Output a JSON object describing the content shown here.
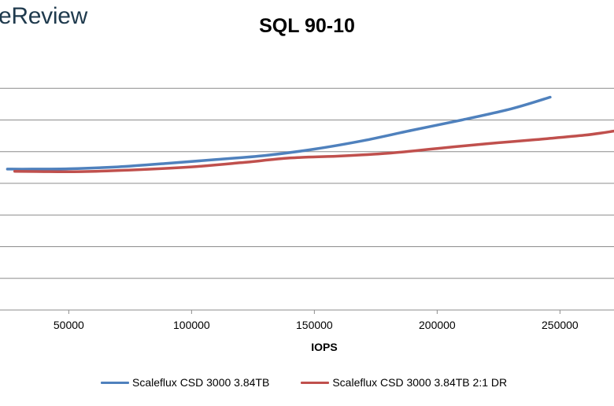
{
  "brand": "eReview",
  "chart_data": {
    "type": "line",
    "title": "SQL 90-10",
    "xlabel": "IOPS",
    "ylabel": "",
    "xlim": [
      22000,
      272000
    ],
    "x_ticks": [
      50000,
      100000,
      150000,
      200000,
      250000
    ],
    "ylim": [
      0,
      8
    ],
    "y_gridlines": [
      1,
      2,
      3,
      4,
      5,
      6,
      7
    ],
    "legend_position": "bottom",
    "series": [
      {
        "name": "Scaleflux CSD 3000 3.84TB",
        "color": "#4f81bd",
        "points": [
          [
            25000,
            4.45
          ],
          [
            35000,
            4.45
          ],
          [
            50000,
            4.46
          ],
          [
            70000,
            4.52
          ],
          [
            90000,
            4.63
          ],
          [
            110000,
            4.75
          ],
          [
            130000,
            4.88
          ],
          [
            150000,
            5.08
          ],
          [
            170000,
            5.35
          ],
          [
            190000,
            5.68
          ],
          [
            210000,
            6.0
          ],
          [
            230000,
            6.35
          ],
          [
            246000,
            6.72
          ]
        ]
      },
      {
        "name": "Scaleflux CSD 3000 3.84TB 2:1 DR",
        "color": "#c0504d",
        "points": [
          [
            28000,
            4.38
          ],
          [
            40000,
            4.37
          ],
          [
            55000,
            4.37
          ],
          [
            75000,
            4.42
          ],
          [
            100000,
            4.52
          ],
          [
            120000,
            4.65
          ],
          [
            140000,
            4.8
          ],
          [
            160000,
            4.86
          ],
          [
            180000,
            4.95
          ],
          [
            200000,
            5.1
          ],
          [
            220000,
            5.25
          ],
          [
            240000,
            5.38
          ],
          [
            260000,
            5.52
          ],
          [
            272000,
            5.65
          ]
        ]
      }
    ]
  }
}
